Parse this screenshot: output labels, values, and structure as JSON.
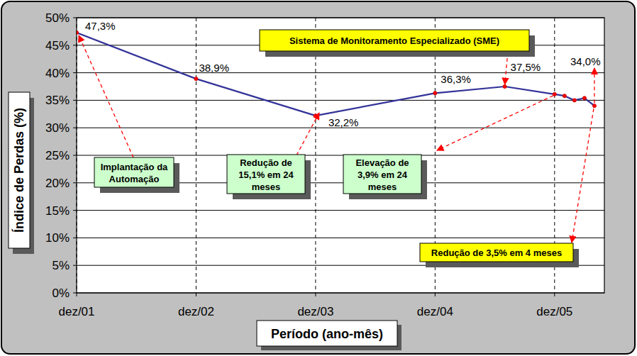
{
  "chart_data": {
    "type": "line",
    "x_label": "Período (ano-mês)",
    "y_label": "Índice de Perdas (%)",
    "x": [
      0,
      12,
      24,
      36,
      43,
      48,
      49,
      50,
      51,
      52
    ],
    "values": [
      47.3,
      38.9,
      32.2,
      36.3,
      37.5,
      36.1,
      35.8,
      35.0,
      35.4,
      34.0
    ],
    "value_labels": [
      "47,3%",
      "38,9%",
      "32,2%",
      "36,3%",
      "37,5%",
      null,
      null,
      null,
      null,
      "34,0%"
    ],
    "data_labels": true,
    "color": "#333399",
    "marker": "circle",
    "xlim": [
      0,
      53
    ],
    "xticks": [
      {
        "value": 0,
        "label": "dez/01"
      },
      {
        "value": 12,
        "label": "dez/02"
      },
      {
        "value": 24,
        "label": "dez/03"
      },
      {
        "value": 36,
        "label": "dez/04"
      },
      {
        "value": 48,
        "label": "dez/05"
      }
    ],
    "ylim": [
      0,
      50
    ],
    "yticks": [
      {
        "value": 0,
        "label": "0%"
      },
      {
        "value": 5,
        "label": "5%"
      },
      {
        "value": 10,
        "label": "10%"
      },
      {
        "value": 15,
        "label": "15%"
      },
      {
        "value": 20,
        "label": "20%"
      },
      {
        "value": 25,
        "label": "25%"
      },
      {
        "value": 30,
        "label": "30%"
      },
      {
        "value": 35,
        "label": "35%"
      },
      {
        "value": 40,
        "label": "40%"
      },
      {
        "value": 45,
        "label": "45%"
      },
      {
        "value": 50,
        "label": "50%"
      }
    ],
    "grid": true,
    "annotations": [
      {
        "text": "Implantação da\nAutomação"
      },
      {
        "text": "Redução de\n15,1% em 24\nmeses"
      },
      {
        "text": "Elevação de\n3,9% em 24\nmeses"
      },
      {
        "text": "Sistema de Monitoramento Especializado (SME)"
      },
      {
        "text": "Redução de 3,5% em 4 meses"
      }
    ]
  }
}
